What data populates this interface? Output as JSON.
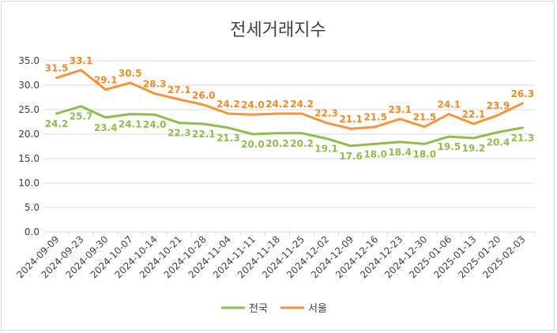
{
  "chart_data": {
    "type": "line",
    "title": "전세거래지수",
    "xlabel": "",
    "ylabel": "",
    "ylim": [
      0,
      35
    ],
    "yticks": [
      "0.0",
      "5.0",
      "10.0",
      "15.0",
      "20.0",
      "25.0",
      "30.0",
      "35.0"
    ],
    "grid": true,
    "legend_position": "bottom",
    "categories": [
      "2024-09-09",
      "2024-09-23",
      "2024-09-30",
      "2024-10-07",
      "2024-10-14",
      "2024-10-21",
      "2024-10-28",
      "2024-11-04",
      "2024-11-11",
      "2024-11-18",
      "2024-11-25",
      "2024-12-02",
      "2024-12-09",
      "2024-12-16",
      "2024-12-23",
      "2024-12-30",
      "2025-01-06",
      "2025-01-13",
      "2025-01-20",
      "2025-02-03"
    ],
    "series": [
      {
        "name": "전국",
        "color": "#8fbb4f",
        "label_color": "#8fbb4f",
        "label_position": "below",
        "values": [
          24.2,
          25.7,
          23.4,
          24.1,
          24.0,
          22.3,
          22.1,
          21.3,
          20.0,
          20.2,
          20.2,
          19.1,
          17.6,
          18.0,
          18.4,
          18.0,
          19.5,
          19.2,
          20.4,
          21.3
        ],
        "labels": [
          "24.2",
          "25.7",
          "23.4",
          "24.1",
          "24.0",
          "22.3",
          "22.1",
          "21.3",
          "20.0",
          "20.2",
          "20.2",
          "19.1",
          "17.6",
          "18.0",
          "18.4",
          "18.0",
          "19.5",
          "19.2",
          "20.4",
          "21.3"
        ]
      },
      {
        "name": "서울",
        "color": "#f4953e",
        "label_color": "#f08a2a",
        "label_position": "above",
        "values": [
          31.5,
          33.1,
          29.1,
          30.5,
          28.3,
          27.1,
          26.0,
          24.2,
          24.0,
          24.2,
          24.2,
          22.3,
          21.1,
          21.5,
          23.1,
          21.5,
          24.1,
          22.1,
          23.9,
          26.3
        ],
        "labels": [
          "31.5",
          "33.1",
          "29.1",
          "30.5",
          "28.3",
          "27.1",
          "26.0",
          "24.2",
          "24.0",
          "24.2",
          "24.2",
          "22.3",
          "21.1",
          "21.5",
          "23.1",
          "21.5",
          "24.1",
          "22.1",
          "23.9",
          "26.3"
        ]
      }
    ]
  }
}
